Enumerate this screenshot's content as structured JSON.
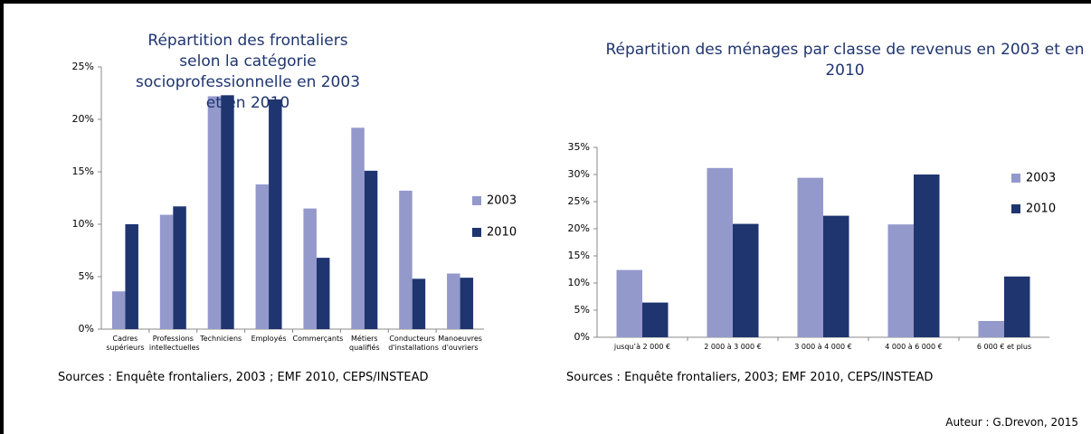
{
  "chart_data": [
    {
      "type": "bar",
      "title": "Répartition des frontaliers selon la catégorie socioprofessionnelle en 2003 et en 2010",
      "categories": [
        "Cadres\nsupérieurs",
        "Professions\nintellectuelles",
        "Techniciens",
        "Employés",
        "Commerçants",
        "Métiers\nqualifiés",
        "Conducteurs\nd'installations",
        "Manoeuvres\nd'ouvriers"
      ],
      "series": [
        {
          "name": "2003",
          "color": "#9499cb",
          "values": [
            3.6,
            10.9,
            22.2,
            13.8,
            11.5,
            19.2,
            13.2,
            5.3
          ]
        },
        {
          "name": "2010",
          "color": "#1f3570",
          "values": [
            10.0,
            11.7,
            22.3,
            21.9,
            6.8,
            15.1,
            4.8,
            4.9
          ]
        }
      ],
      "ylim": [
        0,
        25
      ],
      "yticks": [
        {
          "value": 0,
          "label": "0%"
        },
        {
          "value": 5,
          "label": "5%"
        },
        {
          "value": 10,
          "label": "10%"
        },
        {
          "value": 15,
          "label": "15%"
        },
        {
          "value": 20,
          "label": "20%"
        },
        {
          "value": 25,
          "label": "25%"
        }
      ],
      "legend": "right",
      "source": "Sources :  Enquête frontaliers, 2003 ; EMF 2010, CEPS/INSTEAD"
    },
    {
      "type": "bar",
      "title": "Répartition des ménages par classe de revenus en 2003 et en 2010",
      "categories": [
        "jusqu’à 2 000 €",
        "2 000 à 3 000 €",
        "3 000 à 4 000 €",
        "4 000 à 6 000 €",
        "6 000 €  et plus"
      ],
      "series": [
        {
          "name": "2003",
          "color": "#9499cb",
          "values": [
            12.4,
            31.2,
            29.4,
            20.8,
            3.0
          ]
        },
        {
          "name": "2010",
          "color": "#1f3570",
          "values": [
            6.4,
            20.9,
            22.4,
            30.0,
            11.2
          ]
        }
      ],
      "ylim": [
        0,
        35
      ],
      "yticks": [
        {
          "value": 0,
          "label": "0%"
        },
        {
          "value": 5,
          "label": "5%"
        },
        {
          "value": 10,
          "label": "10%"
        },
        {
          "value": 15,
          "label": "15%"
        },
        {
          "value": 20,
          "label": "20%"
        },
        {
          "value": 25,
          "label": "25%"
        },
        {
          "value": 30,
          "label": "30%"
        },
        {
          "value": 35,
          "label": "35%"
        }
      ],
      "legend": "right",
      "source": "Sources :  Enquête frontaliers, 2003; EMF 2010, CEPS/INSTEAD"
    }
  ],
  "author": "Auteur : G.Drevon, 2015"
}
